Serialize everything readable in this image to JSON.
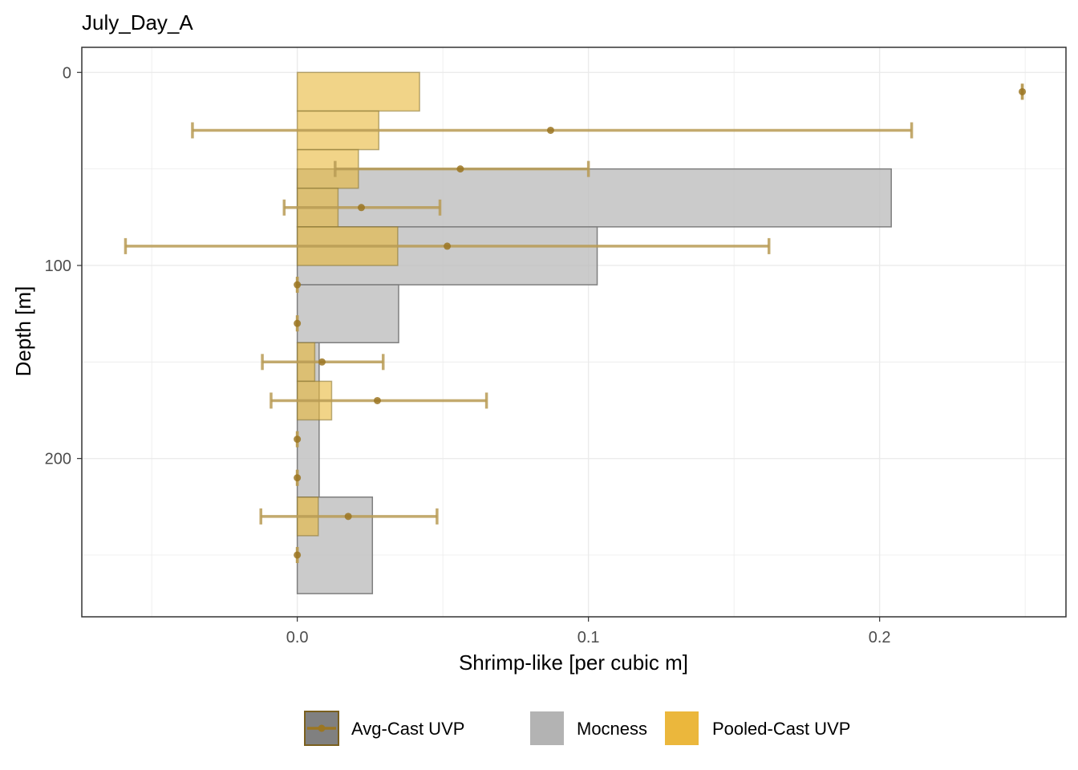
{
  "chart_data": {
    "type": "bar",
    "title": "July_Day_A",
    "xlabel": "Shrimp-like [per cubic m]",
    "ylabel": "Depth [m]",
    "xlim": [
      -0.074,
      0.264
    ],
    "ylim": [
      282,
      -13
    ],
    "y_reversed": true,
    "x_ticks": [
      0.0,
      0.1,
      0.2
    ],
    "x_tick_labels": [
      "0.0",
      "0.1",
      "0.2"
    ],
    "y_ticks": [
      0,
      100,
      200
    ],
    "y_tick_labels": [
      "0",
      "100",
      "200"
    ],
    "grid": true,
    "legend_position": "bottom",
    "legend": [
      {
        "label": "Avg-Cast UVP",
        "key": "avg"
      },
      {
        "label": "Mocness",
        "key": "mocness"
      },
      {
        "label": "Pooled-Cast UVP",
        "key": "pooled"
      }
    ],
    "colors": {
      "mocness_fill": "#BEBEBE",
      "mocness_stroke": "#7F7F7F",
      "pooled_fill": "#E8B839",
      "pooled_stroke": "#8C7A3A",
      "avg_color": "#9B7622",
      "avg_errorbar": "#B89B55",
      "legend_avg_fill": "#808080",
      "legend_mocness_fill": "#B3B3B3",
      "legend_pooled_fill": "#EBB73C",
      "grid": "#EBEBEB",
      "panel_border": "#333333"
    },
    "series": [
      {
        "name": "Mocness",
        "kind": "horizontal-bar",
        "bins": [
          {
            "depth_top": 50,
            "depth_bottom": 80,
            "value": 0.204
          },
          {
            "depth_top": 80,
            "depth_bottom": 110,
            "value": 0.103
          },
          {
            "depth_top": 110,
            "depth_bottom": 140,
            "value": 0.0348
          },
          {
            "depth_top": 140,
            "depth_bottom": 220,
            "value": 0.0075
          },
          {
            "depth_top": 220,
            "depth_bottom": 270,
            "value": 0.0258
          }
        ]
      },
      {
        "name": "Pooled-Cast UVP",
        "kind": "horizontal-bar",
        "bins": [
          {
            "depth_top": 0,
            "depth_bottom": 20,
            "value": 0.042
          },
          {
            "depth_top": 20,
            "depth_bottom": 40,
            "value": 0.028
          },
          {
            "depth_top": 40,
            "depth_bottom": 60,
            "value": 0.021
          },
          {
            "depth_top": 60,
            "depth_bottom": 80,
            "value": 0.014
          },
          {
            "depth_top": 80,
            "depth_bottom": 100,
            "value": 0.0345
          },
          {
            "depth_top": 140,
            "depth_bottom": 160,
            "value": 0.006
          },
          {
            "depth_top": 160,
            "depth_bottom": 180,
            "value": 0.0118
          },
          {
            "depth_top": 220,
            "depth_bottom": 240,
            "value": 0.0072
          }
        ]
      },
      {
        "name": "Avg-Cast UVP",
        "kind": "point-errorbar",
        "points": [
          {
            "depth": 10,
            "mean": 0.249,
            "lo": 0.249,
            "hi": 0.249
          },
          {
            "depth": 30,
            "mean": 0.087,
            "lo": -0.036,
            "hi": 0.211
          },
          {
            "depth": 50,
            "mean": 0.056,
            "lo": 0.013,
            "hi": 0.1
          },
          {
            "depth": 70,
            "mean": 0.022,
            "lo": -0.0045,
            "hi": 0.049
          },
          {
            "depth": 90,
            "mean": 0.0515,
            "lo": -0.059,
            "hi": 0.162
          },
          {
            "depth": 110,
            "mean": 0.0,
            "lo": 0.0,
            "hi": 0.0
          },
          {
            "depth": 130,
            "mean": 0.0,
            "lo": 0.0,
            "hi": 0.0
          },
          {
            "depth": 150,
            "mean": 0.0085,
            "lo": -0.012,
            "hi": 0.0295
          },
          {
            "depth": 170,
            "mean": 0.0275,
            "lo": -0.009,
            "hi": 0.065
          },
          {
            "depth": 190,
            "mean": 0.0,
            "lo": 0.0,
            "hi": 0.0
          },
          {
            "depth": 210,
            "mean": 0.0,
            "lo": 0.0,
            "hi": 0.0
          },
          {
            "depth": 230,
            "mean": 0.0175,
            "lo": -0.0125,
            "hi": 0.048
          },
          {
            "depth": 250,
            "mean": 0.0,
            "lo": 0.0,
            "hi": 0.0
          }
        ]
      }
    ]
  }
}
